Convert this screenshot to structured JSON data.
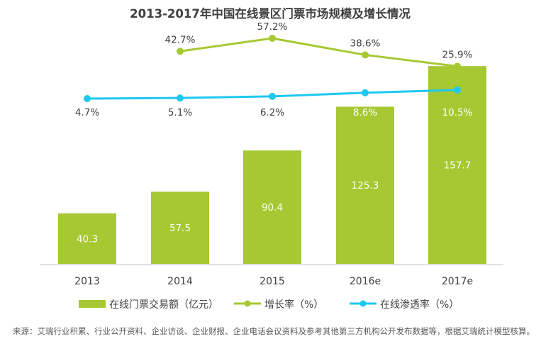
{
  "chart_data": {
    "type": "bar",
    "title": "2013-2017年中国在线景区门票市场规模及增长情况",
    "categories": [
      "2013",
      "2014",
      "2015",
      "2016e",
      "2017e"
    ],
    "bar_series": {
      "name": "在线门票交易额（亿元）",
      "color": "#a6c832",
      "values": [
        40.3,
        57.5,
        90.4,
        125.3,
        157.7
      ],
      "labels": [
        "40.3",
        "57.5",
        "90.4",
        "125.3",
        "157.7"
      ]
    },
    "line_series": [
      {
        "name": "增长率（%）",
        "color": "#a6c832",
        "values": [
          null,
          42.7,
          57.2,
          38.6,
          25.9
        ],
        "labels": [
          "",
          "42.7%",
          "57.2%",
          "38.6%",
          "25.9%"
        ]
      },
      {
        "name": "在线渗透率（%）",
        "color": "#1ec8f0",
        "values": [
          4.7,
          5.1,
          6.2,
          8.6,
          10.5
        ],
        "labels": [
          "4.7%",
          "5.1%",
          "6.2%",
          "8.6%",
          "10.5%"
        ]
      }
    ],
    "xlabel": "",
    "ylabel": "",
    "ylim": [
      0,
      180
    ],
    "grid": false,
    "legend_position": "bottom"
  },
  "footer": {
    "source": "来源：艾瑞行业积累、行业公开资料、企业访谈、企业财报、企业电话会议资料及参考其他第三方机构公开发布数据等，根据艾瑞统计模型核算。"
  }
}
